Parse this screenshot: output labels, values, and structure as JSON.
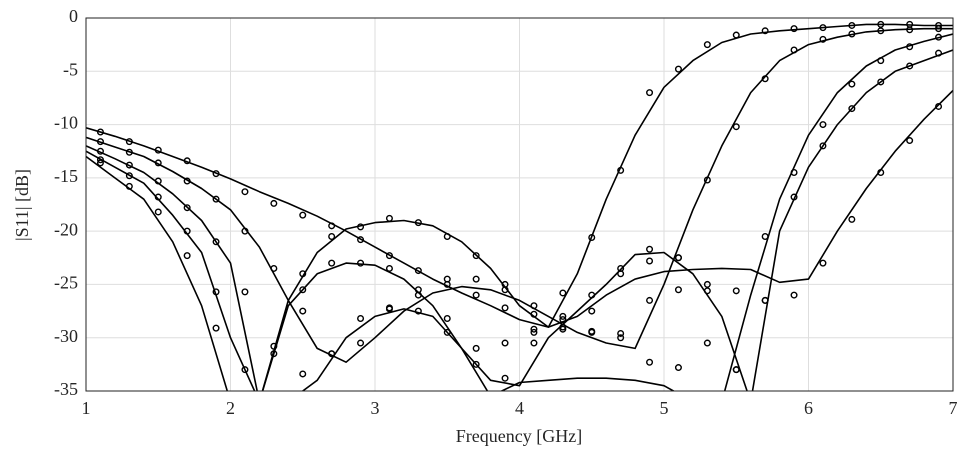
{
  "chart_data": {
    "type": "line",
    "xlabel": "Frequency [GHz]",
    "ylabel": "|S11| [dB]",
    "xlim": [
      1,
      7
    ],
    "ylim": [
      -35,
      0
    ],
    "xticks": [
      1,
      2,
      3,
      4,
      5,
      6,
      7
    ],
    "yticks": [
      0,
      -5,
      -10,
      -15,
      -20,
      -25,
      -30,
      -35
    ],
    "grid": true,
    "lines": {
      "x": [
        1.0,
        1.2,
        1.4,
        1.6,
        1.8,
        2.0,
        2.2,
        2.4,
        2.6,
        2.8,
        3.0,
        3.2,
        3.4,
        3.6,
        3.8,
        4.0,
        4.2,
        4.4,
        4.6,
        4.8,
        5.0,
        5.2,
        5.4,
        5.6,
        5.8,
        6.0,
        6.2,
        6.4,
        6.6,
        6.8,
        7.0
      ],
      "series": [
        {
          "color": "#000000",
          "values": [
            -10.3,
            -11.1,
            -12.0,
            -13.0,
            -14.0,
            -15.1,
            -16.3,
            -17.4,
            -18.6,
            -20.0,
            -21.5,
            -23.0,
            -24.5,
            -25.8,
            -27.0,
            -28.3,
            -29.0,
            -24.0,
            -17.0,
            -11.0,
            -6.5,
            -4.0,
            -2.3,
            -1.5,
            -1.2,
            -1.0,
            -0.8,
            -0.6,
            -0.6,
            -0.7,
            -0.7
          ]
        },
        {
          "color": "#000000",
          "values": [
            -11.2,
            -12.1,
            -13.0,
            -14.4,
            -16.0,
            -18.0,
            -21.5,
            -26.5,
            -31.0,
            -32.3,
            -30.0,
            -27.5,
            -25.8,
            -25.2,
            -25.5,
            -26.5,
            -28.0,
            -29.5,
            -30.5,
            -31.0,
            -25.0,
            -18.0,
            -12.0,
            -7.0,
            -4.0,
            -2.5,
            -1.8,
            -1.3,
            -1.1,
            -1.0,
            -1.0
          ]
        },
        {
          "color": "#000000",
          "values": [
            -12.0,
            -13.2,
            -14.5,
            -16.5,
            -19.0,
            -23.0,
            -36.0,
            -27.0,
            -24.0,
            -23.0,
            -23.2,
            -24.5,
            -27.0,
            -31.0,
            -35.5,
            -34.2,
            -34.0,
            -33.8,
            -33.8,
            -34.0,
            -34.5,
            -36.0,
            -36.0,
            -26.0,
            -17.0,
            -11.0,
            -7.0,
            -4.5,
            -3.0,
            -2.2,
            -1.5
          ]
        },
        {
          "color": "#000000",
          "values": [
            -12.5,
            -14.0,
            -15.5,
            -18.5,
            -22.0,
            -30.0,
            -36.0,
            -26.5,
            -22.0,
            -19.8,
            -19.2,
            -19.0,
            -19.5,
            -21.0,
            -23.5,
            -27.0,
            -29.0,
            -28.0,
            -26.0,
            -24.5,
            -23.8,
            -23.6,
            -23.5,
            -23.6,
            -24.8,
            -24.5,
            -20.0,
            -16.0,
            -12.5,
            -9.5,
            -6.8
          ]
        },
        {
          "color": "#000000",
          "values": [
            -13.0,
            -15.0,
            -17.0,
            -21.0,
            -27.0,
            -36.0,
            -36.0,
            -36.0,
            -34.0,
            -30.0,
            -28.0,
            -27.3,
            -28.0,
            -31.0,
            -34.0,
            -34.5,
            -30.0,
            -27.5,
            -25.0,
            -22.2,
            -22.0,
            -24.0,
            -28.0,
            -36.0,
            -20.0,
            -14.0,
            -10.0,
            -7.0,
            -5.0,
            -4.0,
            -3.0
          ]
        }
      ]
    },
    "markers": {
      "x": [
        1.1,
        1.3,
        1.5,
        1.7,
        1.9,
        2.1,
        2.3,
        2.5,
        2.7,
        2.9,
        3.1,
        3.3,
        3.5,
        3.7,
        3.9,
        4.1,
        4.3,
        4.5,
        4.7,
        4.9,
        5.1,
        5.3,
        5.5,
        5.7,
        5.9,
        6.1,
        6.3,
        6.5,
        6.7,
        6.9
      ],
      "series": [
        {
          "color": "#000000",
          "values": [
            -10.7,
            -11.6,
            -12.4,
            -13.4,
            -14.6,
            -16.3,
            -17.4,
            -18.5,
            -19.5,
            -20.8,
            -22.3,
            -23.7,
            -25.0,
            -26.0,
            -27.2,
            -29.2,
            -25.8,
            -20.6,
            -14.3,
            -7.0,
            -4.8,
            -2.5,
            -1.6,
            -1.2,
            -1.0,
            -0.9,
            -0.7,
            -0.6,
            -0.6,
            -0.7
          ]
        },
        {
          "color": "#000000",
          "values": [
            -11.6,
            -12.6,
            -13.6,
            -15.3,
            -17.0,
            -20.0,
            -23.5,
            -27.5,
            -31.5,
            -30.5,
            -27.3,
            -26.0,
            -24.5,
            -24.5,
            -25.5,
            -27.0,
            -29.0,
            -29.5,
            -30.0,
            -26.5,
            -22.5,
            -15.2,
            -10.2,
            -5.7,
            -3.0,
            -2.0,
            -1.5,
            -1.2,
            -1.1,
            -1.0
          ]
        },
        {
          "color": "#000000",
          "values": [
            -12.5,
            -13.8,
            -15.3,
            -17.8,
            -21.0,
            -25.7,
            -31.5,
            -25.5,
            -23.0,
            -23.0,
            -23.5,
            -25.5,
            -28.2,
            -31.0,
            -30.5,
            -29.5,
            -29.2,
            -29.4,
            -29.6,
            -32.3,
            -32.8,
            -30.5,
            -33.0,
            -20.5,
            -14.5,
            -10.0,
            -6.2,
            -4.0,
            -2.7,
            -1.8
          ]
        },
        {
          "color": "#000000",
          "values": [
            -13.3,
            -14.8,
            -16.8,
            -20.0,
            -25.7,
            -33.0,
            -30.8,
            -24.0,
            -20.5,
            -19.6,
            -18.8,
            -19.2,
            -20.5,
            -22.3,
            -25.0,
            -27.8,
            -28.3,
            -27.5,
            -23.5,
            -22.8,
            -25.5,
            -25.0,
            -25.6,
            -26.5,
            -26.0,
            -23.0,
            -18.9,
            -14.5,
            -11.5,
            -8.3
          ]
        },
        {
          "color": "#000000",
          "values": [
            -13.6,
            -15.8,
            -18.2,
            -22.3,
            -29.1,
            null,
            null,
            -33.4,
            -31.5,
            -28.2,
            -27.2,
            -27.5,
            -29.5,
            -32.5,
            -33.8,
            -30.5,
            -28.0,
            -26.0,
            -24.0,
            -21.7,
            -22.5,
            -25.6,
            -33.0,
            -26.5,
            -16.8,
            -12.0,
            -8.5,
            -6.0,
            -4.5,
            -3.3
          ]
        }
      ]
    }
  }
}
